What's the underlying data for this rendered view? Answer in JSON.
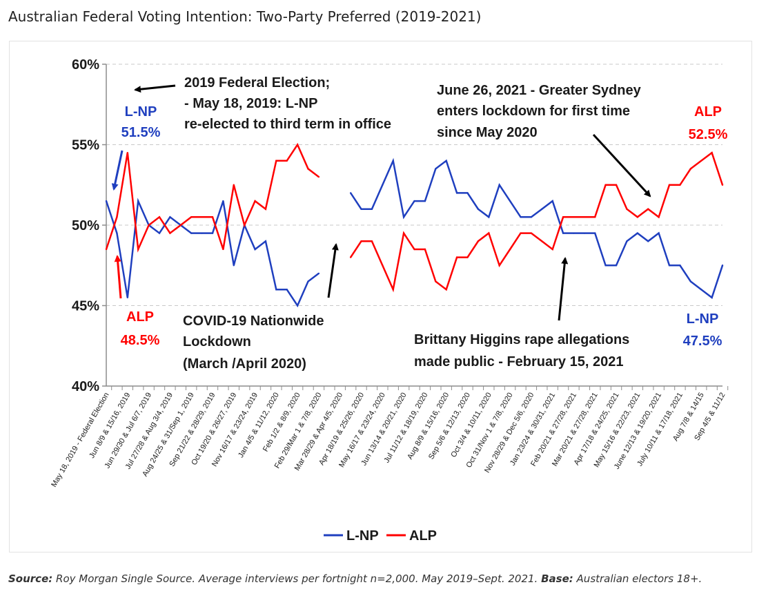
{
  "page": {
    "title": "Australian Federal Voting Intention: Two-Party Preferred (2019-2021)",
    "source_label": "Source:",
    "source_text": "Roy Morgan Single Source. Average interviews per fortnight n=2,000. May 2019–Sept. 2021.",
    "base_label": "Base:",
    "base_text": "Australian electors 18+."
  },
  "colors": {
    "lnp": "#1f3fbf",
    "alp": "#ff0000",
    "text": "#1a1a1a",
    "grid": "#c8c8c8",
    "axis": "#8c8c8c",
    "arrow": "#000000"
  },
  "chart_data": {
    "type": "line",
    "title": "Australian Federal Voting Intention: Two-Party Preferred (2019-2021)",
    "xlabel": "",
    "ylabel": "",
    "ylim": [
      40,
      60
    ],
    "yticks": [
      40,
      45,
      50,
      55,
      60
    ],
    "ytick_labels": [
      "40%",
      "45%",
      "50%",
      "55%",
      "60%"
    ],
    "grid": "horizontal dashed",
    "legend_position": "bottom-center",
    "categories": [
      "May 18, 2019 - Federal Election",
      "",
      "Jun 8/9 & 15/16, 2019",
      "",
      "Jun 29/30 & Jul 6/7, 2019",
      "",
      "Jul 27/28 & Aug 3/4, 2019",
      "",
      "Aug 24/25 & 31/Sep 1, 2019",
      "",
      "Sep 21/22 & 28/29, 2019",
      "",
      "Oct 19/20 & 26/27, 2019",
      "",
      "Nov 16/17 & 23/24, 2019",
      "",
      "Jan 4/5 & 11/12, 2020",
      "",
      "Feb 1/2 & 8/9, 2020",
      "",
      "Feb 29/Mar 1 & 7/8, 2020",
      "",
      "Mar 28/29 & Apr 4/5, 2020",
      "",
      "Apr 18/19 & 25/26, 2020",
      "",
      "May 16/17 & 23/24, 2020",
      "",
      "Jun 13/14 & 20/21, 2020",
      "",
      "Jul 11/12 & 18/19, 2020",
      "",
      "Aug 8/9 & 15/16, 2020",
      "",
      "Sep 5/6 & 12/13, 2020",
      "",
      "Oct 3/4 & 10/11, 2020",
      "",
      "Oct 31/Nov 1 & 7/8, 2020",
      "",
      "Nov 28/29 & Dec 5/6, 2020",
      "",
      "Jan 23/24 & 30/31, 2021",
      "",
      "Feb 20/21 & 27/28, 2021",
      "",
      "Mar 20/21 & 27/28, 2021",
      "",
      "Apr 17/18 & 24/25, 2021",
      "",
      "May 15/16 & 22/23, 2021",
      "",
      "June 12/13 & 19/20, 2021",
      "",
      "July 10/11 & 17/18, 2021",
      "",
      "Aug 7/8 & 14/15",
      "",
      "Sep 4/5 & 11/12"
    ],
    "series": [
      {
        "name": "L-NP",
        "color": "#1f3fbf",
        "values": [
          51.5,
          49.5,
          45.5,
          51.5,
          50,
          49.5,
          50.5,
          50,
          49.5,
          49.5,
          49.5,
          51.5,
          47.5,
          50,
          48.5,
          49,
          46,
          46,
          45,
          46.5,
          47,
          null,
          null,
          52,
          51,
          51,
          52.5,
          54,
          50.5,
          51.5,
          51.5,
          53.5,
          54,
          52,
          52,
          51,
          50.5,
          52.5,
          51.5,
          50.5,
          50.5,
          51,
          51.5,
          49.5,
          49.5,
          49.5,
          49.5,
          47.5,
          47.5,
          49,
          49.5,
          49,
          49.5,
          47.5,
          47.5,
          46.5,
          46,
          45.5,
          47.5
        ]
      },
      {
        "name": "ALP",
        "color": "#ff0000",
        "values": [
          48.5,
          50.5,
          54.5,
          48.5,
          50,
          50.5,
          49.5,
          50,
          50.5,
          50.5,
          50.5,
          48.5,
          52.5,
          50,
          51.5,
          51,
          54,
          54,
          55,
          53.5,
          53,
          null,
          null,
          48,
          49,
          49,
          47.5,
          46,
          49.5,
          48.5,
          48.5,
          46.5,
          46,
          48,
          48,
          49,
          49.5,
          47.5,
          48.5,
          49.5,
          49.5,
          49,
          48.5,
          50.5,
          50.5,
          50.5,
          50.5,
          52.5,
          52.5,
          51,
          50.5,
          51,
          50.5,
          52.5,
          52.5,
          53.5,
          54,
          54.5,
          52.5
        ]
      }
    ],
    "annotations": {
      "election_lines": [
        "2019 Federal Election;",
        "- May 18, 2019: L-NP",
        "re-elected to third term in office"
      ],
      "lnp_start_party": "L-NP",
      "lnp_start_value": "51.5%",
      "alp_start_party": "ALP",
      "alp_start_value": "48.5%",
      "covid_lines": [
        "COVID-19 Nationwide",
        "Lockdown",
        "(March /April 2020)"
      ],
      "sydney_lines": [
        "June 26, 2021 - Greater Sydney",
        "enters lockdown for first time",
        "since May 2020"
      ],
      "higgins_lines": [
        "Brittany Higgins rape allegations",
        "made public - February 15, 2021"
      ],
      "alp_end_party": "ALP",
      "alp_end_value": "52.5%",
      "lnp_end_party": "L-NP",
      "lnp_end_value": "47.5%"
    }
  }
}
